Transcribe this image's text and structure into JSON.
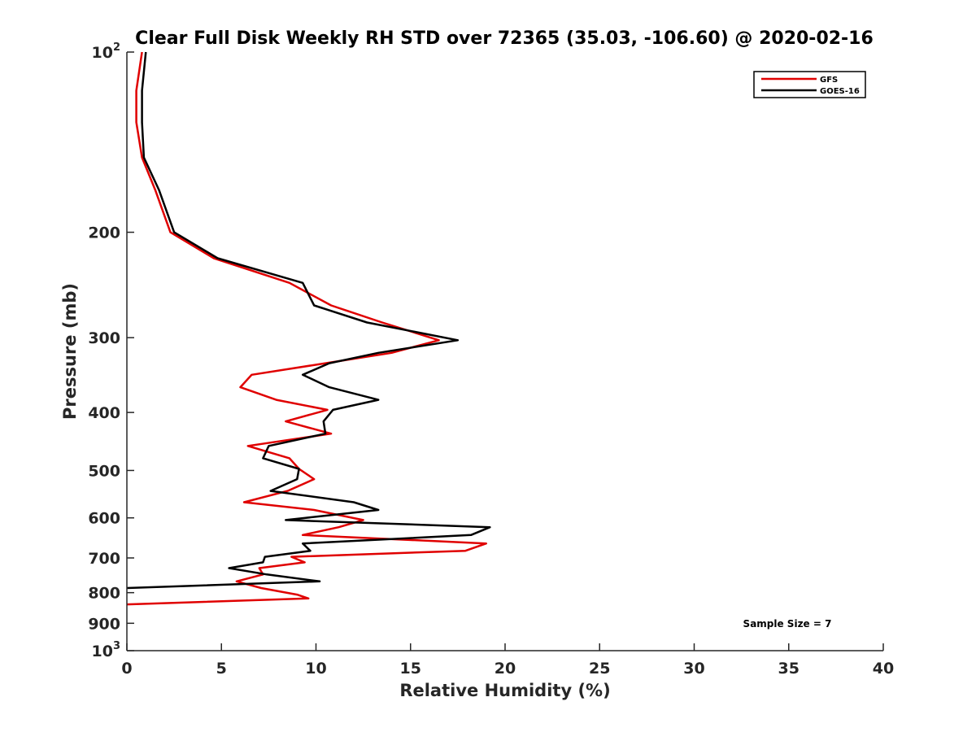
{
  "chart_data": {
    "type": "line",
    "title": "Clear Full Disk Weekly RH STD over 72365 (35.03, -106.60) @ 2020-02-16",
    "xlabel": "Relative Humidity (%)",
    "ylabel": "Pressure (mb)",
    "xlim": [
      0,
      40
    ],
    "ylim": [
      100,
      1000
    ],
    "y_scale": "log",
    "y_reversed": true,
    "grid": false,
    "legend_position": "top-right",
    "x_ticks": [
      0,
      5,
      10,
      15,
      20,
      25,
      30,
      35,
      40
    ],
    "x_tick_labels": [
      "0",
      "5",
      "10",
      "15",
      "20",
      "25",
      "30",
      "35",
      "40"
    ],
    "y_ticks": [
      100,
      200,
      300,
      400,
      500,
      600,
      700,
      800,
      900,
      1000
    ],
    "y_tick_labels": [
      {
        "base": "10",
        "exp": "2"
      },
      {
        "base": "200",
        "exp": ""
      },
      {
        "base": "300",
        "exp": ""
      },
      {
        "base": "400",
        "exp": ""
      },
      {
        "base": "500",
        "exp": ""
      },
      {
        "base": "600",
        "exp": ""
      },
      {
        "base": "700",
        "exp": ""
      },
      {
        "base": "800",
        "exp": ""
      },
      {
        "base": "900",
        "exp": ""
      },
      {
        "base": "10",
        "exp": "3"
      }
    ],
    "annotation": "Sample Size = 7",
    "series": [
      {
        "name": "GFS",
        "color": "#e00000",
        "points": [
          [
            0.8,
            100
          ],
          [
            0.5,
            116
          ],
          [
            0.5,
            131
          ],
          [
            0.8,
            150
          ],
          [
            1.5,
            170
          ],
          [
            2.3,
            200
          ],
          [
            4.6,
            221
          ],
          [
            8.6,
            243
          ],
          [
            10.8,
            265
          ],
          [
            13.5,
            283
          ],
          [
            16.5,
            303
          ],
          [
            14.0,
            318
          ],
          [
            10.5,
            331
          ],
          [
            6.6,
            346
          ],
          [
            6.0,
            363
          ],
          [
            7.9,
            381
          ],
          [
            10.6,
            396
          ],
          [
            8.4,
            414
          ],
          [
            10.8,
            434
          ],
          [
            6.4,
            455
          ],
          [
            8.6,
            477
          ],
          [
            9.1,
            497
          ],
          [
            9.9,
            517
          ],
          [
            8.5,
            541
          ],
          [
            6.2,
            565
          ],
          [
            9.9,
            582
          ],
          [
            12.5,
            605
          ],
          [
            11.2,
            622
          ],
          [
            9.3,
            641
          ],
          [
            19.0,
            662
          ],
          [
            17.9,
            681
          ],
          [
            8.7,
            697
          ],
          [
            9.4,
            712
          ],
          [
            7.0,
            728
          ],
          [
            7.2,
            746
          ],
          [
            5.8,
            766
          ],
          [
            7.1,
            786
          ],
          [
            9.0,
            806
          ],
          [
            9.6,
            818
          ],
          [
            0,
            837
          ]
        ]
      },
      {
        "name": "GOES-16",
        "color": "#000000",
        "points": [
          [
            1.0,
            100
          ],
          [
            0.8,
            116
          ],
          [
            0.8,
            131
          ],
          [
            0.9,
            150
          ],
          [
            1.7,
            170
          ],
          [
            2.5,
            200
          ],
          [
            4.8,
            221
          ],
          [
            9.3,
            243
          ],
          [
            9.9,
            265
          ],
          [
            12.7,
            283
          ],
          [
            17.5,
            303
          ],
          [
            13.3,
            318
          ],
          [
            10.7,
            331
          ],
          [
            9.3,
            346
          ],
          [
            10.7,
            363
          ],
          [
            13.3,
            381
          ],
          [
            10.9,
            396
          ],
          [
            10.4,
            414
          ],
          [
            10.5,
            434
          ],
          [
            7.5,
            455
          ],
          [
            7.2,
            477
          ],
          [
            9.1,
            497
          ],
          [
            9.0,
            517
          ],
          [
            7.6,
            541
          ],
          [
            12.0,
            565
          ],
          [
            13.3,
            582
          ],
          [
            8.4,
            605
          ],
          [
            19.2,
            622
          ],
          [
            18.2,
            641
          ],
          [
            9.3,
            662
          ],
          [
            9.7,
            681
          ],
          [
            7.3,
            697
          ],
          [
            7.2,
            712
          ],
          [
            5.4,
            728
          ],
          [
            7.4,
            746
          ],
          [
            10.2,
            766
          ],
          [
            0,
            786
          ]
        ]
      }
    ]
  }
}
